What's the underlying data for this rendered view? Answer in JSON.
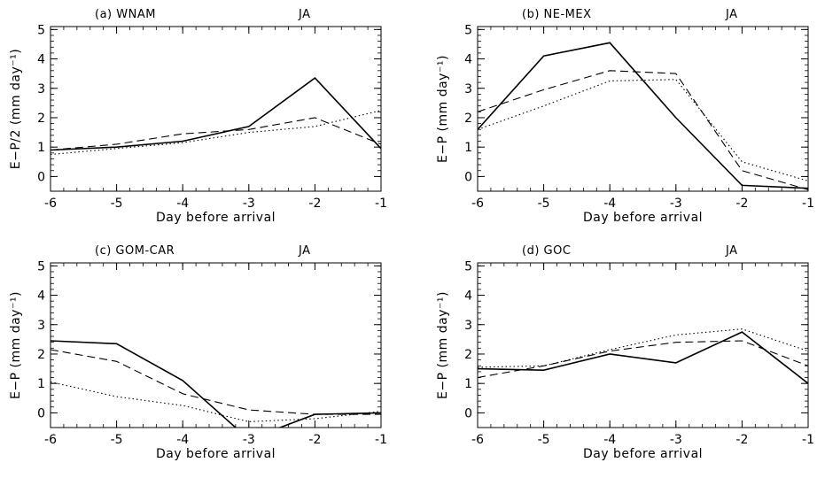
{
  "chart_data": [
    {
      "type": "line",
      "title": "(a) WNAM",
      "season": "JA",
      "xlabel": "Day before arrival",
      "ylabel": "E−P/2 (mm day⁻¹)",
      "xlim": [
        -6,
        -1
      ],
      "ylim": [
        -0.5,
        5.1
      ],
      "xticks": [
        -6,
        -5,
        -4,
        -3,
        -2,
        -1
      ],
      "yticks": [
        0,
        1,
        2,
        3,
        4,
        5
      ],
      "x": [
        -6,
        -5,
        -4,
        -3,
        -2,
        -1
      ],
      "series": [
        {
          "style": "solid",
          "values": [
            0.9,
            1.0,
            1.2,
            1.7,
            3.35,
            0.95
          ]
        },
        {
          "style": "dashed",
          "values": [
            0.9,
            1.1,
            1.45,
            1.6,
            2.0,
            1.1
          ]
        },
        {
          "style": "dotted",
          "values": [
            0.75,
            0.95,
            1.15,
            1.5,
            1.7,
            2.25
          ]
        }
      ]
    },
    {
      "type": "line",
      "title": "(b) NE-MEX",
      "season": "JA",
      "xlabel": "Day before arrival",
      "ylabel": "E−P (mm day⁻¹)",
      "xlim": [
        -6,
        -1
      ],
      "ylim": [
        -0.5,
        5.1
      ],
      "xticks": [
        -6,
        -5,
        -4,
        -3,
        -2,
        -1
      ],
      "yticks": [
        0,
        1,
        2,
        3,
        4,
        5
      ],
      "x": [
        -6,
        -5,
        -4,
        -3,
        -2,
        -1
      ],
      "series": [
        {
          "style": "solid",
          "values": [
            1.6,
            4.1,
            4.55,
            2.0,
            -0.3,
            -0.4
          ]
        },
        {
          "style": "dashed",
          "values": [
            2.2,
            2.95,
            3.6,
            3.5,
            0.2,
            -0.45
          ]
        },
        {
          "style": "dotted",
          "values": [
            1.6,
            2.4,
            3.25,
            3.3,
            0.5,
            -0.15
          ]
        }
      ]
    },
    {
      "type": "line",
      "title": "(c) GOM-CAR",
      "season": "JA",
      "xlabel": "Day before arrival",
      "ylabel": "E−P (mm day⁻¹)",
      "xlim": [
        -6,
        -1
      ],
      "ylim": [
        -0.5,
        5.1
      ],
      "xticks": [
        -6,
        -5,
        -4,
        -3,
        -2,
        -1
      ],
      "yticks": [
        0,
        1,
        2,
        3,
        4,
        5
      ],
      "x": [
        -6,
        -5,
        -4,
        -3,
        -2,
        -1
      ],
      "series": [
        {
          "style": "solid",
          "values": [
            2.45,
            2.35,
            1.1,
            -0.9,
            -0.05,
            0.0
          ]
        },
        {
          "style": "dashed",
          "values": [
            2.15,
            1.75,
            0.65,
            0.1,
            -0.05,
            -0.05
          ]
        },
        {
          "style": "dotted",
          "values": [
            1.05,
            0.55,
            0.25,
            -0.3,
            -0.2,
            0.05
          ]
        }
      ]
    },
    {
      "type": "line",
      "title": "(d) GOC",
      "season": "JA",
      "xlabel": "Day before arrival",
      "ylabel": "E−P (mm day⁻¹)",
      "xlim": [
        -6,
        -1
      ],
      "ylim": [
        -0.5,
        5.1
      ],
      "xticks": [
        -6,
        -5,
        -4,
        -3,
        -2,
        -1
      ],
      "yticks": [
        0,
        1,
        2,
        3,
        4,
        5
      ],
      "x": [
        -6,
        -5,
        -4,
        -3,
        -2,
        -1
      ],
      "series": [
        {
          "style": "solid",
          "values": [
            1.5,
            1.45,
            2.0,
            1.7,
            2.75,
            1.0
          ]
        },
        {
          "style": "dashed",
          "values": [
            1.2,
            1.6,
            2.1,
            2.4,
            2.45,
            1.6
          ]
        },
        {
          "style": "dotted",
          "values": [
            1.55,
            1.6,
            2.15,
            2.65,
            2.85,
            2.1
          ]
        }
      ]
    }
  ]
}
